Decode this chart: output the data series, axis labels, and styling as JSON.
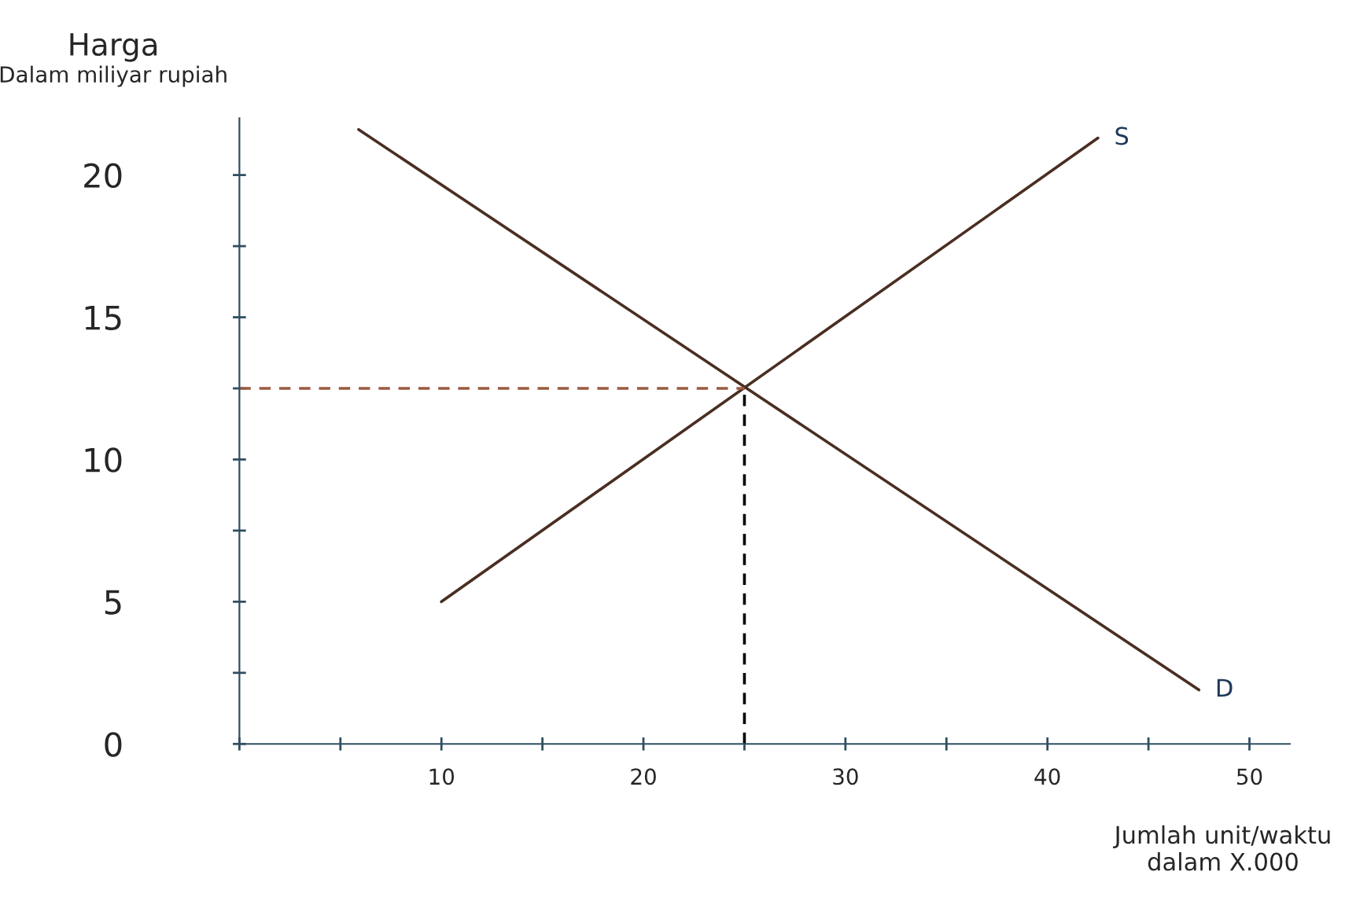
{
  "chart_data": {
    "type": "line",
    "ylabel": "Harga",
    "xlabel": "Jumlah unit/waktu\ndalam X.000",
    "annotations": [
      "Dalam miliyar rupiah"
    ],
    "xlim": [
      0,
      52
    ],
    "ylim": [
      0,
      22
    ],
    "xticks": [
      {
        "value": 0,
        "label": null
      },
      {
        "value": 5,
        "label": null
      },
      10,
      {
        "value": 15,
        "label": null
      },
      20,
      {
        "value": 25,
        "label": null
      },
      30,
      {
        "value": 35,
        "label": null
      },
      40,
      {
        "value": 45,
        "label": null
      },
      50
    ],
    "yticks": [
      0,
      {
        "value": 2.5,
        "label": null
      },
      5,
      {
        "value": 7.5,
        "label": null
      },
      10,
      {
        "value": 12.5,
        "label": null
      },
      15,
      {
        "value": 17.5,
        "label": null
      },
      20
    ],
    "grid": false,
    "legend": false,
    "marker": "none",
    "series": [
      {
        "name": "S",
        "color": "#4a2e22",
        "x": [
          10,
          42.5
        ],
        "values": [
          5,
          21.3
        ],
        "line_style": "solid"
      },
      {
        "name": "D",
        "color": "#4a2e22",
        "x": [
          5.9,
          47.5
        ],
        "values": [
          21.6,
          1.9
        ],
        "line_style": "solid"
      },
      {
        "color": "#9a5a40",
        "x": [
          0,
          25
        ],
        "values": [
          12.5,
          12.5
        ],
        "line_style": "dashed"
      },
      {
        "color": "#000000",
        "x": [
          25,
          25
        ],
        "values": [
          0,
          12.5
        ],
        "line_style": "dashed"
      }
    ]
  }
}
